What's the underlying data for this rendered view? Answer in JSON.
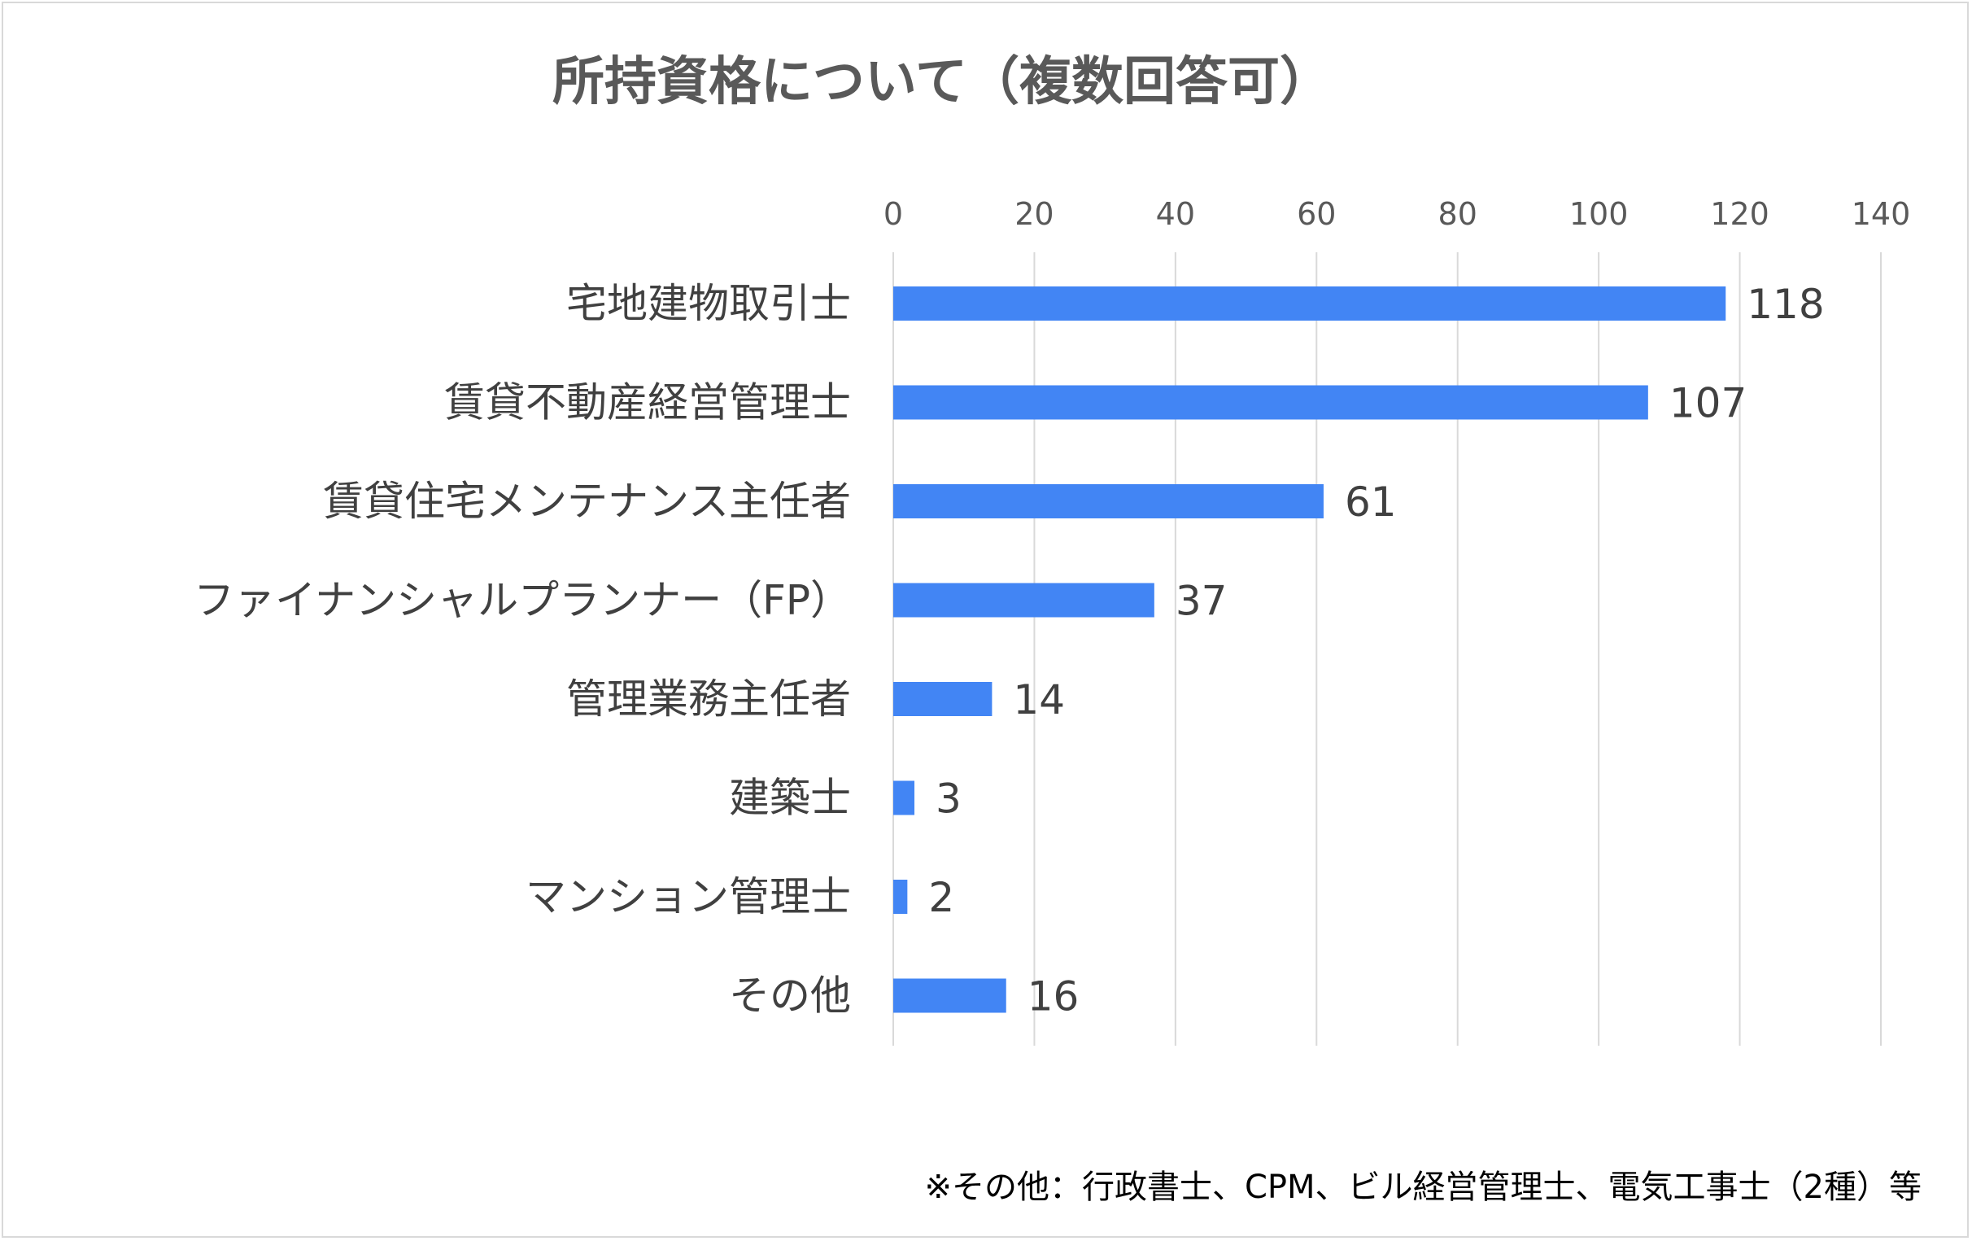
{
  "chart_data": {
    "type": "bar",
    "orientation": "horizontal",
    "title": "所持資格について（複数回答可）",
    "categories": [
      "宅地建物取引士",
      "賃貸不動産経営管理士",
      "賃貸住宅メンテナンス主任者",
      "ファイナンシャルプランナー（FP）",
      "管理業務主任者",
      "建築士",
      "マンション管理士",
      "その他"
    ],
    "values": [
      118,
      107,
      61,
      37,
      14,
      3,
      2,
      16
    ],
    "xlim": [
      0,
      140
    ],
    "xticks": [
      0,
      20,
      40,
      60,
      80,
      100,
      120,
      140
    ],
    "tick_labels": [
      "0",
      "20",
      "40",
      "60",
      "80",
      "100",
      "120",
      "140"
    ],
    "x_axis_position": "top",
    "grid": true,
    "legend": "none",
    "bar_color": "#4285f4",
    "footnote": "※その他：行政書士、CPM、ビル経営管理士、電気工事士（2種）等"
  }
}
